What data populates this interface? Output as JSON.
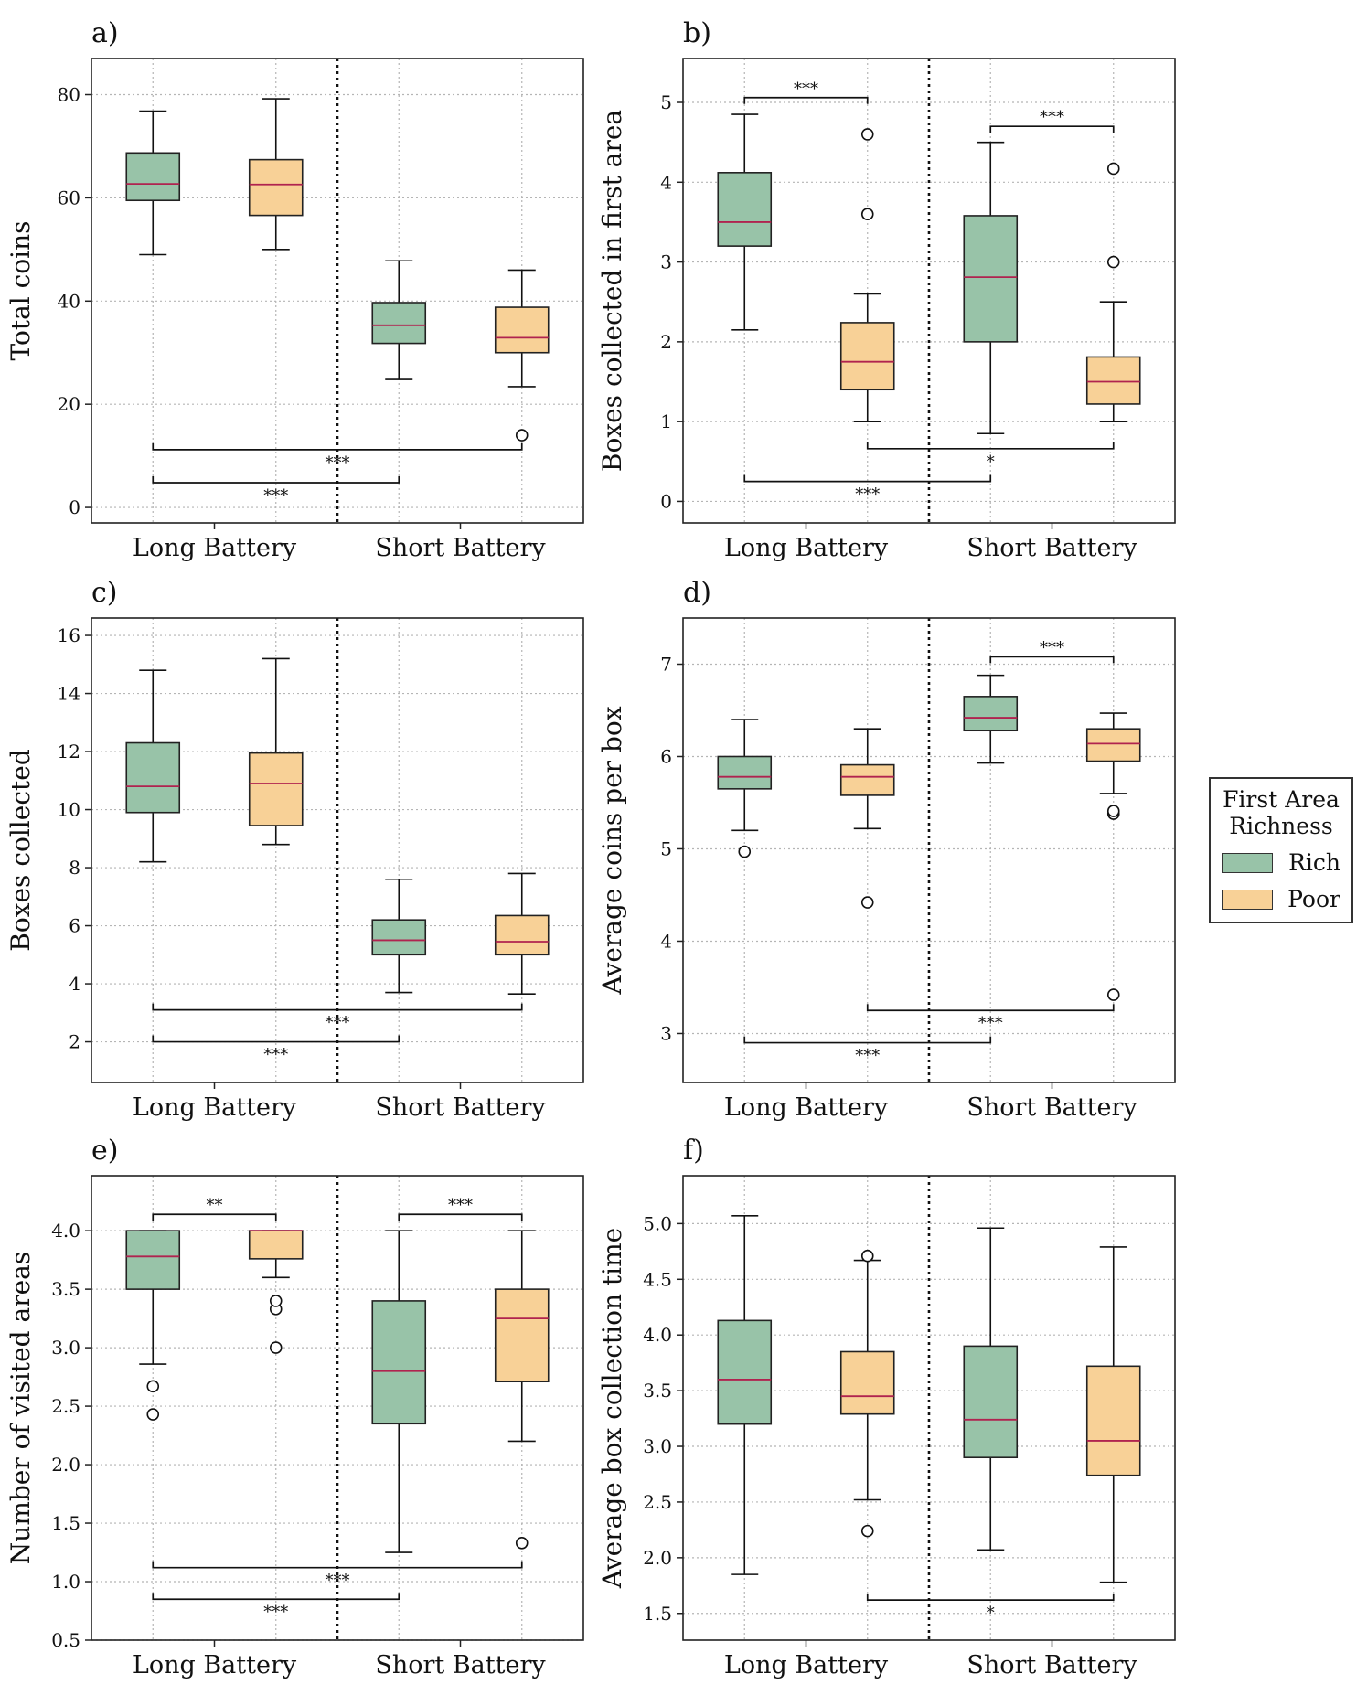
{
  "colors": {
    "rich": "#98c3a8",
    "poor": "#f8d197",
    "median": "#b0234f",
    "edge": "#222222",
    "grid": "#b5b5b5"
  },
  "legend": {
    "title_line1": "First Area",
    "title_line2": "Richness",
    "items": [
      "Rich",
      "Poor"
    ]
  },
  "chart_data": [
    {
      "id": "a",
      "panel_label": "a)",
      "type": "box",
      "ylabel": "Total coins",
      "categories": [
        "Long Battery",
        "Short Battery"
      ],
      "ylim": [
        -3,
        87
      ],
      "yticks": [
        0,
        20,
        40,
        60,
        80
      ],
      "ytick_labels": [
        "0",
        "20",
        "40",
        "60",
        "80"
      ],
      "series": [
        {
          "name": "Rich",
          "boxes": [
            {
              "wlo": 49,
              "q1": 59.5,
              "med": 62.7,
              "q3": 68.7,
              "whi": 76.8,
              "fliers": []
            },
            {
              "wlo": 24.8,
              "q1": 31.8,
              "med": 35.3,
              "q3": 39.7,
              "whi": 47.8,
              "fliers": []
            }
          ]
        },
        {
          "name": "Poor",
          "boxes": [
            {
              "wlo": 50,
              "q1": 56.6,
              "med": 62.6,
              "q3": 67.4,
              "whi": 79.2,
              "fliers": []
            },
            {
              "wlo": 23.4,
              "q1": 30.0,
              "med": 32.9,
              "q3": 38.8,
              "whi": 46.0,
              "fliers": [
                14.0
              ]
            }
          ]
        }
      ],
      "significance": [
        {
          "from": "Rich|Long Battery",
          "to": "Poor|Short Battery",
          "y": 11.2,
          "stars": "***",
          "dir": "down"
        },
        {
          "from": "Rich|Long Battery",
          "to": "Rich|Short Battery",
          "y": 4.8,
          "stars": "***",
          "dir": "down"
        }
      ]
    },
    {
      "id": "b",
      "panel_label": "b)",
      "type": "box",
      "ylabel": "Boxes collected in first area",
      "categories": [
        "Long Battery",
        "Short Battery"
      ],
      "ylim": [
        -0.27,
        5.55
      ],
      "yticks": [
        0,
        1,
        2,
        3,
        4,
        5
      ],
      "ytick_labels": [
        "0",
        "1",
        "2",
        "3",
        "4",
        "5"
      ],
      "series": [
        {
          "name": "Rich",
          "boxes": [
            {
              "wlo": 2.15,
              "q1": 3.2,
              "med": 3.5,
              "q3": 4.12,
              "whi": 4.85,
              "fliers": []
            },
            {
              "wlo": 0.85,
              "q1": 2.0,
              "med": 2.81,
              "q3": 3.58,
              "whi": 4.5,
              "fliers": []
            }
          ]
        },
        {
          "name": "Poor",
          "boxes": [
            {
              "wlo": 1.0,
              "q1": 1.4,
              "med": 1.75,
              "q3": 2.24,
              "whi": 2.6,
              "fliers": [
                3.6,
                4.6
              ]
            },
            {
              "wlo": 1.0,
              "q1": 1.22,
              "med": 1.5,
              "q3": 1.81,
              "whi": 2.5,
              "fliers": [
                3.0,
                4.17
              ]
            }
          ]
        }
      ],
      "significance": [
        {
          "from": "Rich|Long Battery",
          "to": "Poor|Long Battery",
          "y": 5.06,
          "stars": "***",
          "dir": "up"
        },
        {
          "from": "Rich|Short Battery",
          "to": "Poor|Short Battery",
          "y": 4.7,
          "stars": "***",
          "dir": "up"
        },
        {
          "from": "Poor|Long Battery",
          "to": "Poor|Short Battery",
          "y": 0.66,
          "stars": "*",
          "dir": "down"
        },
        {
          "from": "Rich|Long Battery",
          "to": "Rich|Short Battery",
          "y": 0.25,
          "stars": "***",
          "dir": "down"
        }
      ]
    },
    {
      "id": "c",
      "panel_label": "c)",
      "type": "box",
      "ylabel": "Boxes collected",
      "categories": [
        "Long Battery",
        "Short Battery"
      ],
      "ylim": [
        0.6,
        16.6
      ],
      "yticks": [
        2,
        4,
        6,
        8,
        10,
        12,
        14,
        16
      ],
      "ytick_labels": [
        "2",
        "4",
        "6",
        "8",
        "10",
        "12",
        "14",
        "16"
      ],
      "series": [
        {
          "name": "Rich",
          "boxes": [
            {
              "wlo": 8.2,
              "q1": 9.9,
              "med": 10.8,
              "q3": 12.3,
              "whi": 14.8,
              "fliers": []
            },
            {
              "wlo": 3.7,
              "q1": 5.0,
              "med": 5.5,
              "q3": 6.2,
              "whi": 7.6,
              "fliers": []
            }
          ]
        },
        {
          "name": "Poor",
          "boxes": [
            {
              "wlo": 8.8,
              "q1": 9.45,
              "med": 10.9,
              "q3": 11.95,
              "whi": 15.2,
              "fliers": []
            },
            {
              "wlo": 3.65,
              "q1": 5.0,
              "med": 5.45,
              "q3": 6.35,
              "whi": 7.8,
              "fliers": []
            }
          ]
        }
      ],
      "significance": [
        {
          "from": "Rich|Long Battery",
          "to": "Poor|Short Battery",
          "y": 3.1,
          "stars": "***",
          "dir": "down"
        },
        {
          "from": "Rich|Long Battery",
          "to": "Rich|Short Battery",
          "y": 2.0,
          "stars": "***",
          "dir": "down"
        }
      ]
    },
    {
      "id": "d",
      "panel_label": "d)",
      "type": "box",
      "ylabel": "Average coins per box",
      "categories": [
        "Long Battery",
        "Short Battery"
      ],
      "ylim": [
        2.47,
        7.5
      ],
      "yticks": [
        3,
        4,
        5,
        6,
        7
      ],
      "ytick_labels": [
        "3",
        "4",
        "5",
        "6",
        "7"
      ],
      "series": [
        {
          "name": "Rich",
          "boxes": [
            {
              "wlo": 5.2,
              "q1": 5.65,
              "med": 5.78,
              "q3": 6.0,
              "whi": 6.4,
              "fliers": [
                4.97
              ]
            },
            {
              "wlo": 5.93,
              "q1": 6.28,
              "med": 6.42,
              "q3": 6.65,
              "whi": 6.88,
              "fliers": []
            }
          ]
        },
        {
          "name": "Poor",
          "boxes": [
            {
              "wlo": 5.22,
              "q1": 5.58,
              "med": 5.78,
              "q3": 5.91,
              "whi": 6.3,
              "fliers": [
                4.42
              ]
            },
            {
              "wlo": 5.6,
              "q1": 5.95,
              "med": 6.14,
              "q3": 6.3,
              "whi": 6.47,
              "fliers": [
                5.38,
                5.41,
                3.42
              ]
            }
          ]
        }
      ],
      "significance": [
        {
          "from": "Rich|Short Battery",
          "to": "Poor|Short Battery",
          "y": 7.08,
          "stars": "***",
          "dir": "up"
        },
        {
          "from": "Poor|Long Battery",
          "to": "Poor|Short Battery",
          "y": 3.25,
          "stars": "***",
          "dir": "down"
        },
        {
          "from": "Rich|Long Battery",
          "to": "Rich|Short Battery",
          "y": 2.9,
          "stars": "***",
          "dir": "down"
        }
      ]
    },
    {
      "id": "e",
      "panel_label": "e)",
      "type": "box",
      "ylabel": "Number of visited areas",
      "categories": [
        "Long Battery",
        "Short Battery"
      ],
      "ylim": [
        0.5,
        4.47
      ],
      "yticks": [
        0.5,
        1.0,
        1.5,
        2.0,
        2.5,
        3.0,
        3.5,
        4.0
      ],
      "ytick_labels": [
        "0.5",
        "1.0",
        "1.5",
        "2.0",
        "2.5",
        "3.0",
        "3.5",
        "4.0"
      ],
      "series": [
        {
          "name": "Rich",
          "boxes": [
            {
              "wlo": 2.86,
              "q1": 3.5,
              "med": 3.78,
              "q3": 4.0,
              "whi": 4.0,
              "fliers": [
                2.67,
                2.43
              ]
            },
            {
              "wlo": 1.25,
              "q1": 2.35,
              "med": 2.8,
              "q3": 3.4,
              "whi": 4.0,
              "fliers": []
            }
          ]
        },
        {
          "name": "Poor",
          "boxes": [
            {
              "wlo": 3.6,
              "q1": 3.76,
              "med": 4.0,
              "q3": 4.0,
              "whi": 4.0,
              "fliers": [
                3.0,
                3.33,
                3.4
              ]
            },
            {
              "wlo": 2.2,
              "q1": 2.71,
              "med": 3.25,
              "q3": 3.5,
              "whi": 4.0,
              "fliers": [
                1.33
              ]
            }
          ]
        }
      ],
      "significance": [
        {
          "from": "Rich|Long Battery",
          "to": "Poor|Long Battery",
          "y": 4.14,
          "stars": "**",
          "dir": "up"
        },
        {
          "from": "Rich|Short Battery",
          "to": "Poor|Short Battery",
          "y": 4.14,
          "stars": "***",
          "dir": "up"
        },
        {
          "from": "Rich|Long Battery",
          "to": "Poor|Short Battery",
          "y": 1.12,
          "stars": "***",
          "dir": "down"
        },
        {
          "from": "Rich|Long Battery",
          "to": "Rich|Short Battery",
          "y": 0.85,
          "stars": "***",
          "dir": "down"
        }
      ]
    },
    {
      "id": "f",
      "panel_label": "f)",
      "type": "box",
      "ylabel": "Average box collection time",
      "categories": [
        "Long Battery",
        "Short Battery"
      ],
      "ylim": [
        1.26,
        5.43
      ],
      "yticks": [
        1.5,
        2.0,
        2.5,
        3.0,
        3.5,
        4.0,
        4.5,
        5.0
      ],
      "ytick_labels": [
        "1.5",
        "2.0",
        "2.5",
        "3.0",
        "3.5",
        "4.0",
        "4.5",
        "5.0"
      ],
      "series": [
        {
          "name": "Rich",
          "boxes": [
            {
              "wlo": 1.85,
              "q1": 3.2,
              "med": 3.6,
              "q3": 4.13,
              "whi": 5.07,
              "fliers": []
            },
            {
              "wlo": 2.07,
              "q1": 2.9,
              "med": 3.24,
              "q3": 3.9,
              "whi": 4.96,
              "fliers": []
            }
          ]
        },
        {
          "name": "Poor",
          "boxes": [
            {
              "wlo": 2.52,
              "q1": 3.29,
              "med": 3.45,
              "q3": 3.85,
              "whi": 4.67,
              "fliers": [
                2.24,
                4.71
              ]
            },
            {
              "wlo": 1.78,
              "q1": 2.74,
              "med": 3.05,
              "q3": 3.72,
              "whi": 4.79,
              "fliers": []
            }
          ]
        }
      ],
      "significance": [
        {
          "from": "Poor|Long Battery",
          "to": "Poor|Short Battery",
          "y": 1.62,
          "stars": "*",
          "dir": "down"
        }
      ]
    }
  ]
}
